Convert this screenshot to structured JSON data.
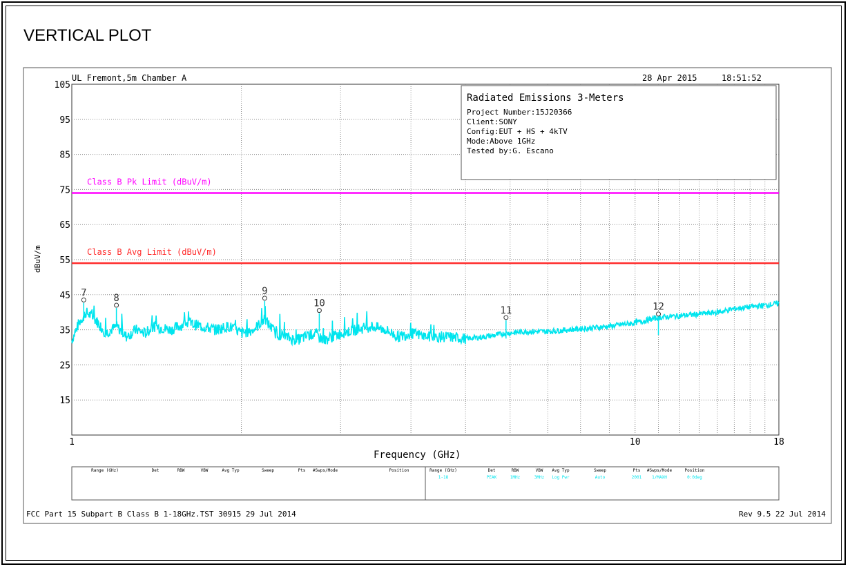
{
  "page_title": "VERTICAL PLOT",
  "header": {
    "lab": "UL Fremont,5m Chamber A",
    "date": "28 Apr 2015",
    "time": "18:51:52"
  },
  "info_box": {
    "title": "Radiated Emissions 3-Meters",
    "lines": [
      "Project Number:15J20366",
      "Client:SONY",
      "Config:EUT + HS + 4kTV",
      "Mode:Above 1GHz",
      "Tested by:G. Escano"
    ]
  },
  "footer": {
    "left": "FCC Part 15 Subpart B Class B 1-18GHz.TST 30915 29 Jul 2014",
    "right": "Rev 9.5 22 Jul 2014"
  },
  "settings_table": {
    "headers_left": [
      "Range (GHz)",
      "Det",
      "RBW",
      "VBW",
      "Avg Typ",
      "Sweep",
      "Pts",
      "#Swps/Mode",
      "Position"
    ],
    "headers_right": [
      "Range (GHz)",
      "Det",
      "RBW",
      "VBW",
      "Avg Typ",
      "Sweep",
      "Pts",
      "#Swps/Mode",
      "Position"
    ],
    "row_right": [
      "1-18",
      "PEAK",
      "1MHz",
      "3MHz",
      "Log Pwr",
      "Auto",
      "2001",
      "1/MAXH",
      "0:0deg"
    ]
  },
  "colors": {
    "trace": "#00e5ee",
    "pk_limit": "#ff00ff",
    "avg_limit": "#ff2a2a",
    "grid": "#888888"
  },
  "chart_data": {
    "type": "line",
    "xscale": "log",
    "xlim": [
      1,
      18
    ],
    "ylim": [
      5,
      105
    ],
    "xlabel": "Frequency (GHz)",
    "ylabel": "dBuV/m",
    "yticks": [
      105,
      95,
      85,
      75,
      65,
      55,
      45,
      35,
      25,
      15
    ],
    "xticks": [
      {
        "value": 1,
        "label": "1"
      },
      {
        "value": 10,
        "label": "10"
      },
      {
        "value": 18,
        "label": "18"
      }
    ],
    "grid": true,
    "limits": [
      {
        "name": "Class B Pk Limit (dBuV/m)",
        "value": 74,
        "color": "#ff00ff"
      },
      {
        "name": "Class B Avg Limit (dBuV/m)",
        "value": 54,
        "color": "#ff2a2a"
      }
    ],
    "markers": [
      {
        "label": "7",
        "x": 1.05,
        "y": 43.5
      },
      {
        "label": "8",
        "x": 1.2,
        "y": 42.0
      },
      {
        "label": "9",
        "x": 2.2,
        "y": 44.0
      },
      {
        "label": "10",
        "x": 2.75,
        "y": 40.5
      },
      {
        "label": "11",
        "x": 5.9,
        "y": 38.5
      },
      {
        "label": "12",
        "x": 11.0,
        "y": 39.5
      }
    ],
    "series": [
      {
        "color": "#00e5ee",
        "x": [
          1.0,
          1.03,
          1.06,
          1.1,
          1.15,
          1.2,
          1.25,
          1.3,
          1.35,
          1.4,
          1.5,
          1.6,
          1.7,
          1.8,
          1.9,
          2.0,
          2.1,
          2.2,
          2.3,
          2.4,
          2.5,
          2.6,
          2.7,
          2.8,
          2.9,
          3.0,
          3.2,
          3.4,
          3.6,
          3.8,
          4.0,
          4.3,
          4.6,
          5.0,
          5.4,
          5.9,
          6.4,
          7.0,
          7.6,
          8.3,
          9.0,
          10.0,
          11.0,
          12.0,
          13.0,
          14.0,
          15.0,
          16.0,
          17.0,
          18.0
        ],
        "y": [
          32,
          37,
          40,
          38,
          34,
          36,
          33,
          35,
          34,
          36,
          35,
          37,
          36,
          35,
          36,
          34,
          35,
          38,
          34,
          33,
          32,
          33,
          34,
          32,
          33,
          34,
          35,
          36,
          35,
          33,
          34,
          33,
          33,
          32.5,
          33,
          34,
          34.5,
          34.5,
          35,
          35.5,
          36,
          37,
          38.5,
          39,
          39.5,
          40,
          41,
          41.5,
          42,
          42.5
        ]
      }
    ]
  }
}
